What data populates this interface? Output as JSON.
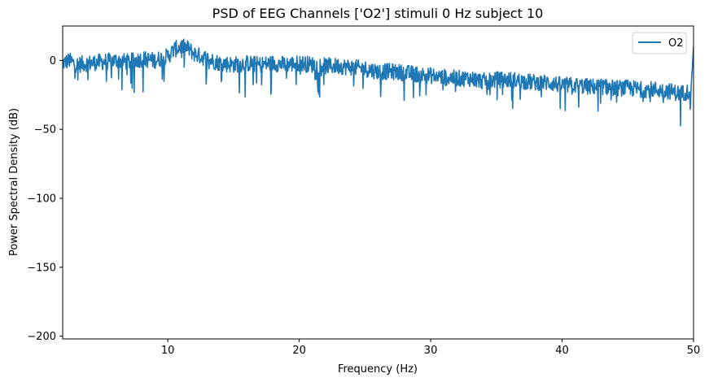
{
  "chart_data": {
    "type": "line",
    "title": "PSD of EEG Channels ['O2'] stimuli 0 Hz subject 10",
    "xlabel": "Frequency (Hz)",
    "ylabel": "Power Spectral Density (dB)",
    "xlim": [
      2,
      50
    ],
    "ylim": [
      -202,
      25
    ],
    "xticks": [
      10,
      20,
      30,
      40,
      50
    ],
    "yticks": [
      0,
      -50,
      -100,
      -150,
      -200
    ],
    "xtick_labels": [
      "10",
      "20",
      "30",
      "40",
      "50"
    ],
    "ytick_labels": [
      "0",
      "−50",
      "−100",
      "−150",
      "−200"
    ],
    "grid": false,
    "legend": {
      "position": "top-right",
      "entries": [
        "O2"
      ]
    },
    "series": [
      {
        "name": "O2",
        "color": "#1f77b4",
        "x": [
          2,
          2.5,
          3,
          4,
          5,
          6,
          7,
          8,
          9,
          10,
          10.5,
          11,
          11.5,
          12,
          13,
          14,
          15,
          16,
          17,
          18,
          19,
          20,
          21,
          22,
          23,
          24,
          25,
          26,
          27,
          28,
          29,
          30,
          31,
          32,
          33,
          34,
          35,
          36,
          37,
          38,
          39,
          40,
          41,
          42,
          43,
          44,
          45,
          46,
          47,
          48,
          49,
          49.8,
          50
        ],
        "y": [
          -2,
          0,
          -3,
          -2,
          -1,
          0,
          -1,
          1,
          0,
          3,
          8,
          10,
          9,
          5,
          1,
          -2,
          -3,
          -2,
          -3,
          -2,
          -3,
          -2,
          -3,
          -4,
          -4,
          -5,
          -6,
          -8,
          -8,
          -9,
          -10,
          -11,
          -12,
          -13,
          -13,
          -15,
          -14,
          -14,
          -15,
          -16,
          -16,
          -18,
          -18,
          -19,
          -19,
          -20,
          -20,
          -21,
          -21,
          -22,
          -24,
          -22,
          10
        ]
      }
    ]
  }
}
